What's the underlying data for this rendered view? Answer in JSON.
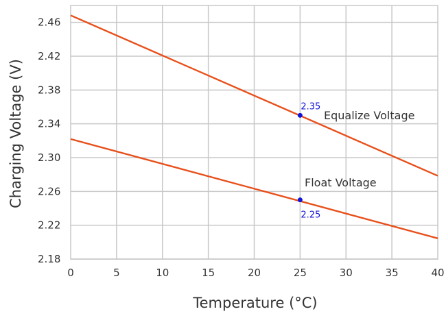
{
  "chart_data": {
    "type": "line",
    "xlabel": "Temperature (°C)",
    "ylabel": "Charging Voltage (V)",
    "xlim": [
      0,
      40
    ],
    "ylim": [
      2.18,
      2.48
    ],
    "x_ticks": [
      "0",
      "5",
      "10",
      "15",
      "20",
      "25",
      "30",
      "35",
      "40"
    ],
    "y_ticks": [
      "2.18",
      "2.22",
      "2.26",
      "2.30",
      "2.34",
      "2.38",
      "2.42",
      "2.46"
    ],
    "grid": true,
    "series": [
      {
        "name": "Equalize Voltage",
        "color": "#e8501b",
        "x": [
          0,
          40
        ],
        "y": [
          2.4683,
          2.2785
        ]
      },
      {
        "name": "Float Voltage",
        "color": "#e8501b",
        "x": [
          0,
          40
        ],
        "y": [
          2.322,
          2.2045
        ]
      }
    ],
    "annotations": [
      {
        "x": 25,
        "y": 2.35,
        "text": "2.35",
        "color": "#1414d8"
      },
      {
        "x": 25,
        "y": 2.25,
        "text": "2.25",
        "color": "#1414d8"
      }
    ]
  }
}
